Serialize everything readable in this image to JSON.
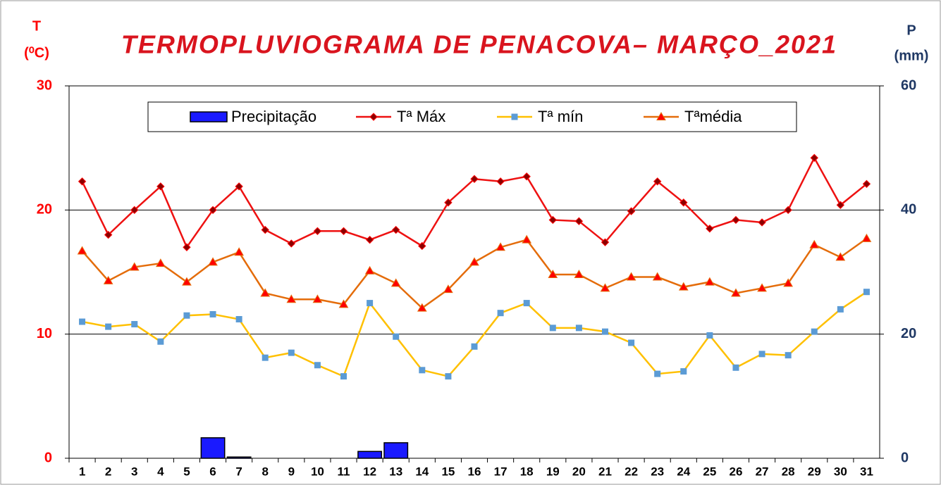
{
  "chart_data": {
    "type": "combo",
    "title": "TERMOPLUVIOGRAMA DE PENACOVA– MARÇO_2021",
    "ylabel": [
      "T",
      "(⁰C)"
    ],
    "y2label": [
      "P",
      "(mm)"
    ],
    "categories": [
      "1",
      "2",
      "3",
      "4",
      "5",
      "6",
      "7",
      "8",
      "9",
      "10",
      "11",
      "12",
      "13",
      "14",
      "15",
      "16",
      "17",
      "18",
      "19",
      "20",
      "21",
      "22",
      "23",
      "24",
      "25",
      "26",
      "27",
      "28",
      "29",
      "30",
      "31"
    ],
    "ylim": [
      0,
      30
    ],
    "yticks": [
      0,
      10,
      20,
      30
    ],
    "y2lim": [
      0,
      60
    ],
    "y2ticks": [
      0,
      20,
      40,
      60
    ],
    "grid": true,
    "legend": "top",
    "series": [
      {
        "name": "Precipitação",
        "type": "bar",
        "axis": "y2",
        "color": "#1a1aff",
        "values": [
          0,
          0,
          0,
          0,
          0,
          3.3,
          0.2,
          0,
          0,
          0,
          0,
          1.1,
          2.5,
          0,
          0,
          0,
          0,
          0,
          0,
          0,
          0,
          0,
          0,
          0,
          0,
          0,
          0,
          0,
          0,
          0,
          0
        ]
      },
      {
        "name": "Tª Máx",
        "type": "line",
        "color": "#ee1111",
        "marker": "diamond",
        "marker_color": "#8b0000",
        "values": [
          22.3,
          18.0,
          20.0,
          21.9,
          17.0,
          20.0,
          21.9,
          18.4,
          17.3,
          18.3,
          18.3,
          17.6,
          18.4,
          17.1,
          20.6,
          22.5,
          22.3,
          22.7,
          19.2,
          19.1,
          17.4,
          19.9,
          22.3,
          20.6,
          18.5,
          19.2,
          19.0,
          20.0,
          24.2,
          20.4,
          22.1
        ]
      },
      {
        "name": "Tª mín",
        "type": "line",
        "color": "#ffc000",
        "marker": "square",
        "marker_color": "#5b9bd5",
        "values": [
          11.0,
          10.6,
          10.8,
          9.4,
          11.5,
          11.6,
          11.2,
          8.1,
          8.5,
          7.5,
          6.6,
          12.5,
          9.8,
          7.1,
          6.6,
          9.0,
          11.7,
          12.5,
          10.5,
          10.5,
          10.2,
          9.3,
          6.8,
          7.0,
          9.9,
          7.3,
          8.4,
          8.3,
          10.2,
          12.0,
          13.4
        ]
      },
      {
        "name": "Tªmédia",
        "type": "line",
        "color": "#e46c0a",
        "marker": "triangle",
        "marker_color": "#ff0000",
        "values": [
          16.7,
          14.3,
          15.4,
          15.7,
          14.2,
          15.8,
          16.6,
          13.3,
          12.8,
          12.8,
          12.4,
          15.1,
          14.1,
          12.1,
          13.6,
          15.8,
          17.0,
          17.6,
          14.8,
          14.8,
          13.7,
          14.6,
          14.6,
          13.8,
          14.2,
          13.3,
          13.7,
          14.1,
          17.2,
          16.2,
          17.7
        ]
      }
    ]
  }
}
